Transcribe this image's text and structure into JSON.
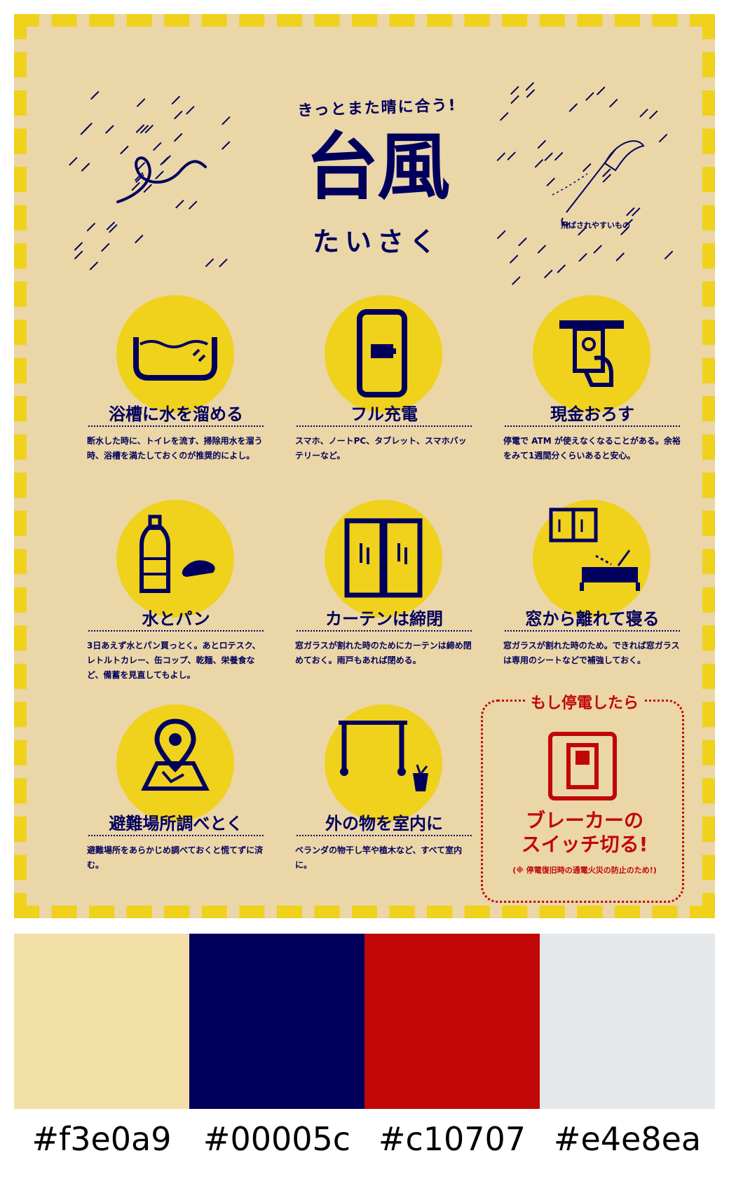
{
  "poster": {
    "subtitle": "きっとまた晴に合う!",
    "title": "台風",
    "title_sub": "たいさく",
    "doodle_right_label": "飛ばされやすいもの"
  },
  "cards": [
    {
      "title": "浴槽に水を溜める",
      "desc": "断水した時に、トイレを流す、掃除用水を溜う時、浴槽を満たしておくのが推奨的によし。",
      "icon": "bathtub-icon"
    },
    {
      "title": "フル充電",
      "desc": "スマホ、ノートPC、タブレット、スマホバッテリーなど。",
      "icon": "smartphone-icon"
    },
    {
      "title": "現金おろす",
      "desc": "停電で ATM が使えなくなることがある。余裕をみて1週間分くらいあると安心。",
      "icon": "atm-icon"
    },
    {
      "title": "水とパン",
      "desc": "3日あえず水とパン買っとく。あとロテスク、レトルトカレー、缶コップ、乾麺、栄養食など、備蓄を見直してもよし。",
      "icon": "water-bread-icon"
    },
    {
      "title": "カーテンは締閉",
      "desc": "窓ガラスが割れた時のためにカーテンは締め閉めておく。雨戸もあれば閉める。",
      "icon": "curtain-icon"
    },
    {
      "title": "窓から離れて寝る",
      "desc": "窓ガラスが割れた時のため。できれば窓ガラスは専用のシートなどで補強しておく。",
      "icon": "bed-window-icon"
    },
    {
      "title": "避難場所調べとく",
      "desc": "避難場所をあらかじめ調べておくと慌てずに済む。",
      "icon": "map-pin-icon"
    },
    {
      "title": "外の物を室内に",
      "desc": "ベランダの物干し竿や植木など、すべて室内に。",
      "icon": "clothesline-icon"
    }
  ],
  "power": {
    "title": "もし停電したら",
    "main_line1": "ブレーカーの",
    "main_line2": "スイッチ切る!",
    "note": "(※ 停電復旧時の通電火災の防止のため!)",
    "icon": "breaker-switch-icon"
  },
  "palette": [
    {
      "hex": "#f3e0a9"
    },
    {
      "hex": "#00005c"
    },
    {
      "hex": "#c10707"
    },
    {
      "hex": "#e4e8ea"
    }
  ],
  "colors": {
    "accent_yellow": "#f0d11c",
    "navy": "#00005c",
    "red": "#c10707",
    "kraft": "#ebd6a8"
  }
}
